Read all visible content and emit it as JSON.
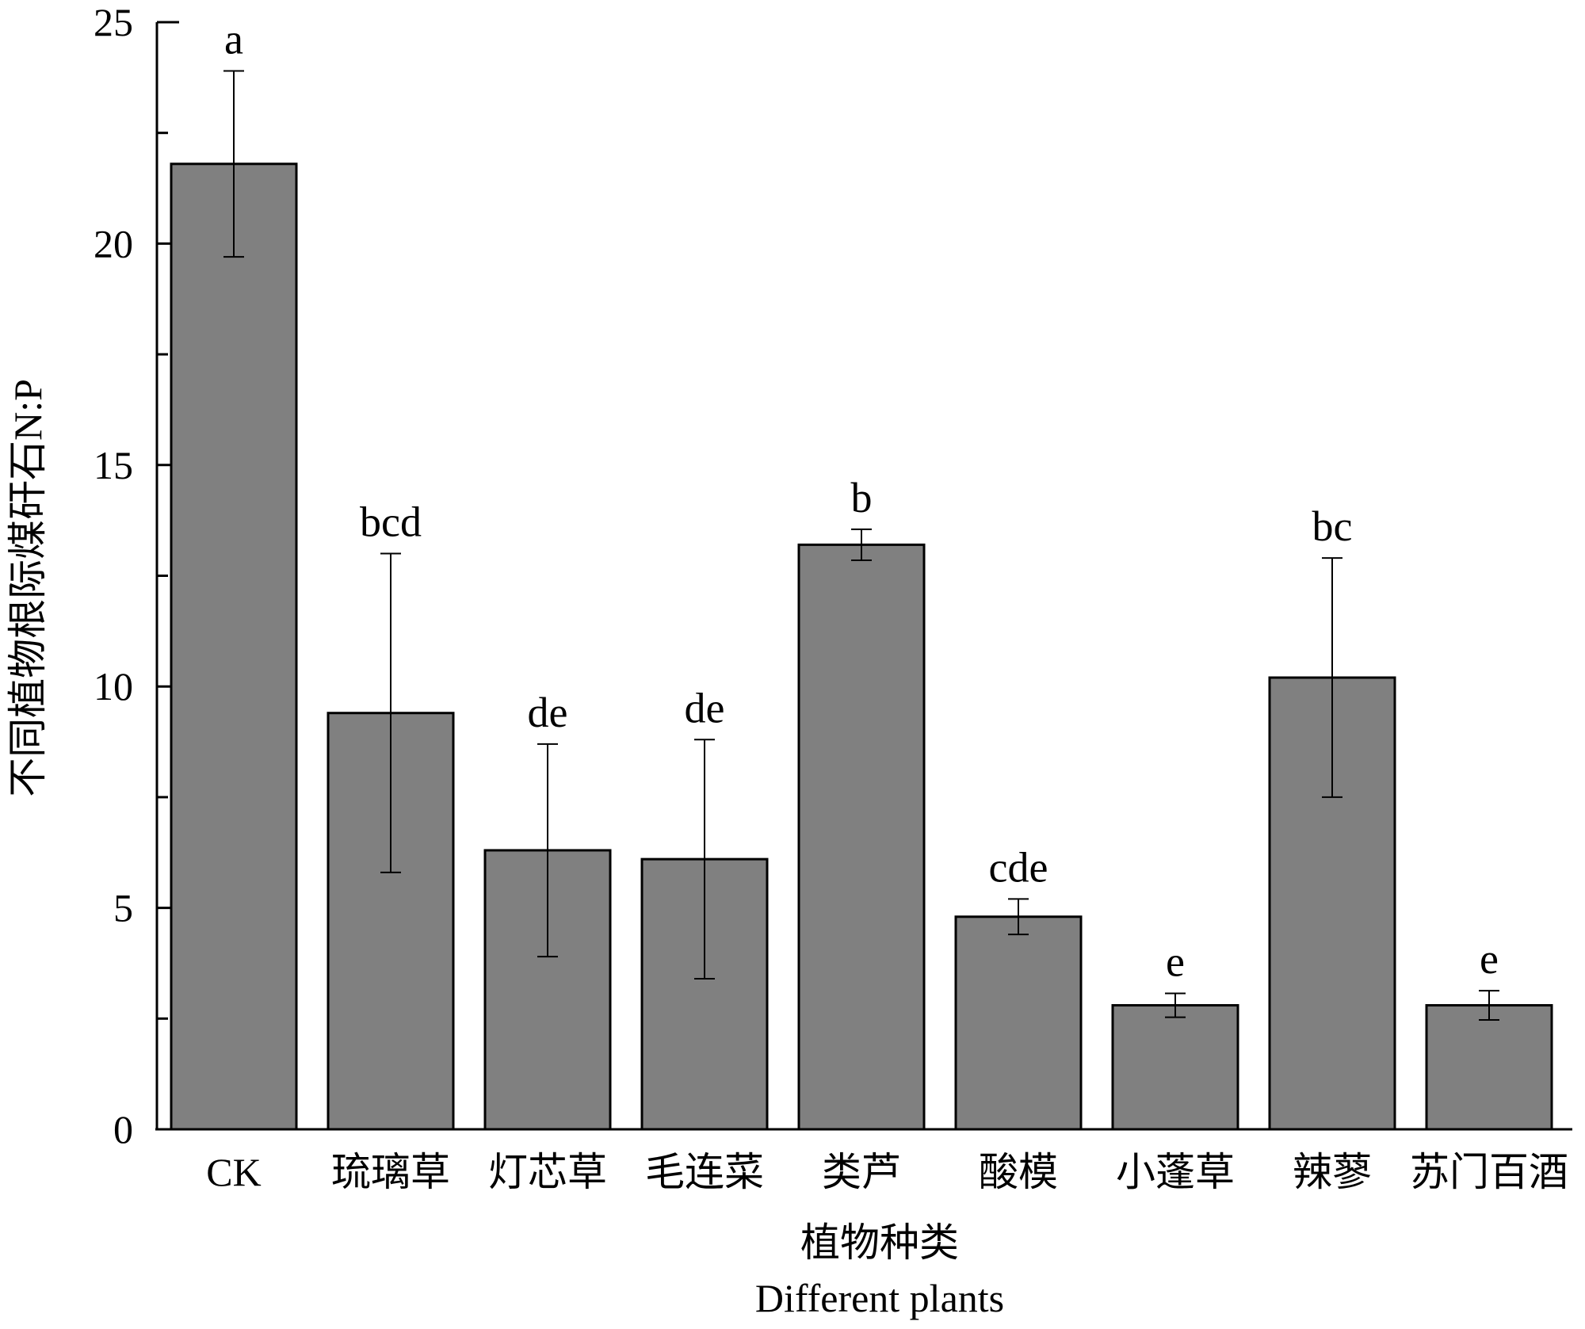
{
  "chart_data": {
    "type": "bar",
    "xlabel": "植物种类",
    "xlabel_en": "Different plants",
    "ylabel": "不同植物根际煤矸石N:P",
    "ylim": [
      0,
      25
    ],
    "yticks": [
      0,
      5,
      10,
      15,
      20,
      25
    ],
    "categories": [
      "CK",
      "琉璃草",
      "灯芯草",
      "毛连菜",
      "类芦",
      "酸模",
      "小蓬草",
      "辣蓼",
      "苏门百酒"
    ],
    "values": [
      21.8,
      9.4,
      6.3,
      6.1,
      13.2,
      4.8,
      2.8,
      10.2,
      2.8
    ],
    "errors": [
      2.1,
      3.6,
      2.4,
      2.7,
      0.35,
      0.4,
      0.27,
      2.7,
      0.33
    ],
    "significance": [
      "a",
      "bcd",
      "de",
      "de",
      "b",
      "cde",
      "e",
      "bc",
      "e"
    ],
    "bar_color": "#808080",
    "grid": false,
    "legend": "none"
  }
}
